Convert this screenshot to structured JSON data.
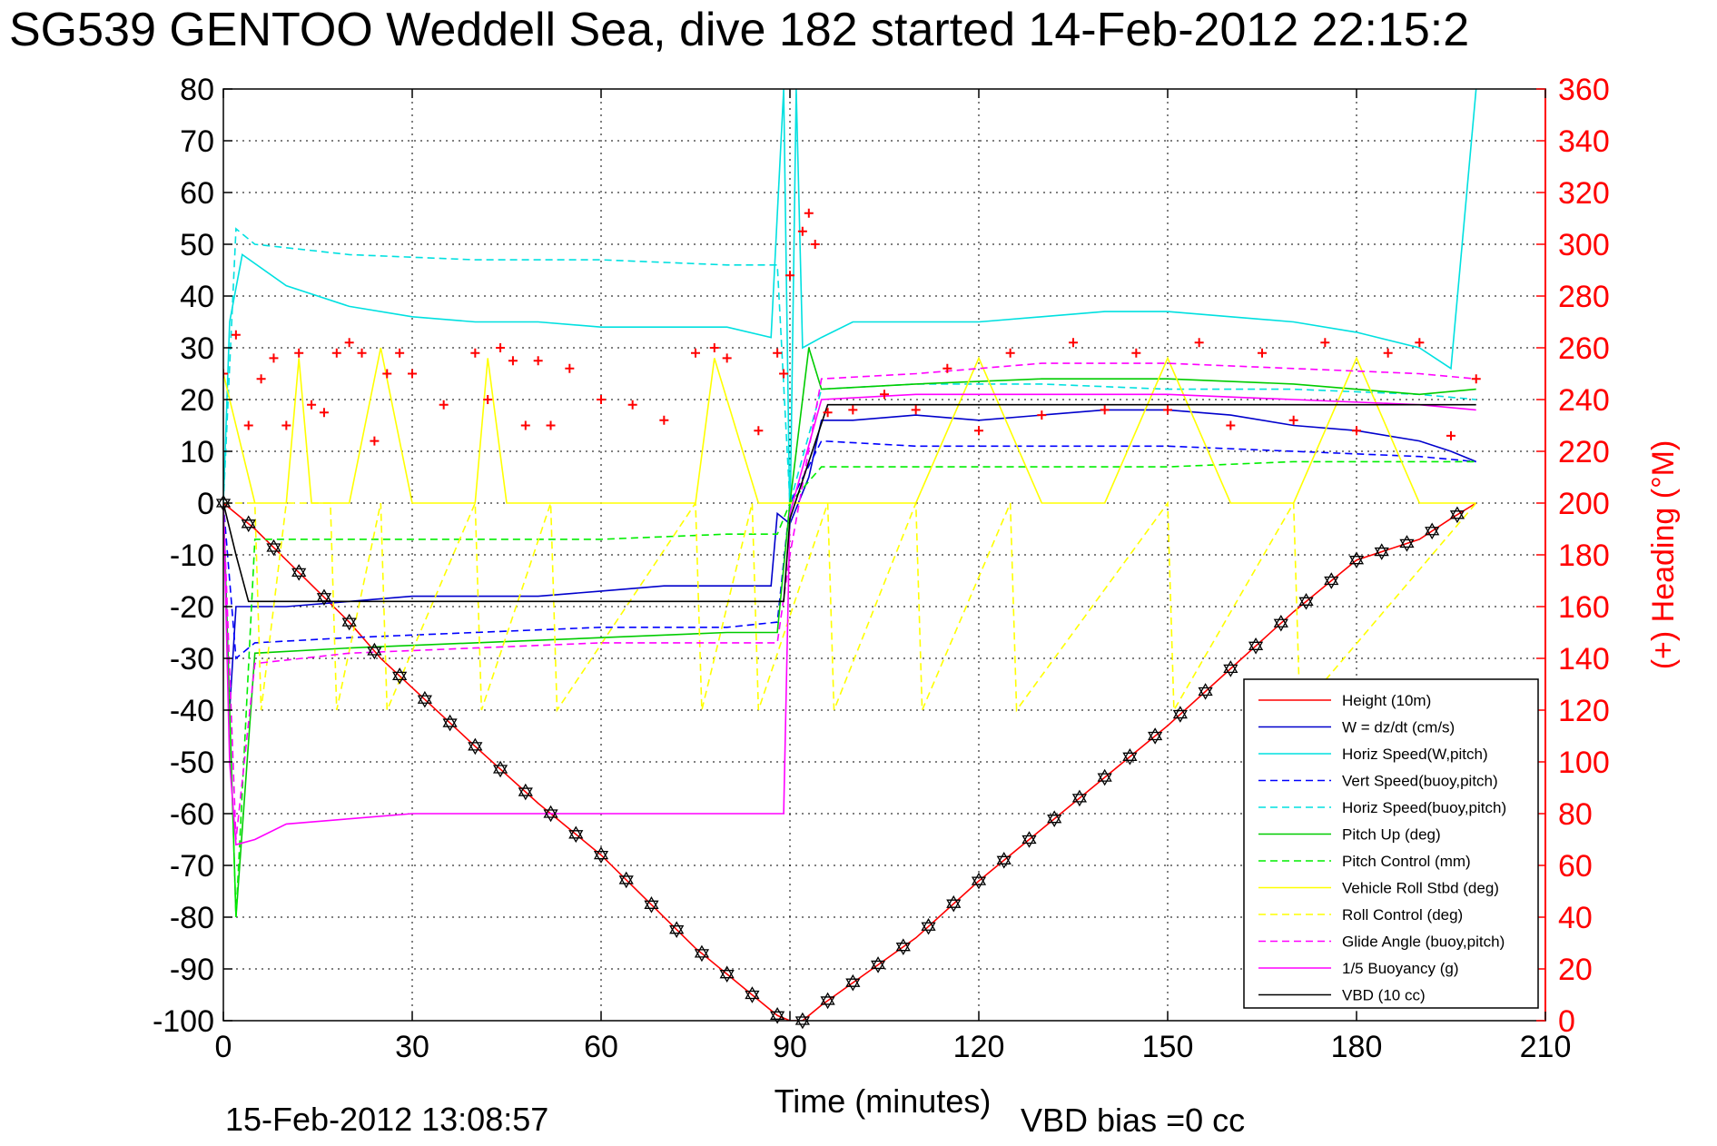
{
  "chart_data": {
    "type": "line",
    "title": "SG539 GENTOO Weddell Sea, dive 182 started 14-Feb-2012 22:15:2",
    "xlabel": "Time (minutes)",
    "ylabel_right": "(+) Heading (°M)",
    "timestamp": "15-Feb-2012 13:08:57",
    "vbd_bias": "VBD bias =0 cc",
    "xlim": [
      0,
      210
    ],
    "ylim": [
      -100,
      80
    ],
    "ylim_right": [
      0,
      360
    ],
    "grid": true,
    "legend_position": "lower-right",
    "x_ticks": [
      "0",
      "30",
      "60",
      "90",
      "120",
      "150",
      "180",
      "210"
    ],
    "y_ticks": [
      "80",
      "70",
      "60",
      "50",
      "40",
      "30",
      "20",
      "10",
      "0",
      "-10",
      "-20",
      "-30",
      "-40",
      "-50",
      "-60",
      "-70",
      "-80",
      "-90",
      "-100"
    ],
    "y_ticks_right": [
      "360",
      "340",
      "320",
      "300",
      "280",
      "260",
      "240",
      "220",
      "200",
      "180",
      "160",
      "140",
      "120",
      "100",
      "80",
      "60",
      "40",
      "20",
      "0"
    ],
    "series": [
      {
        "name": "Height (10m)",
        "color": "#ff0000",
        "style": "solid",
        "x": [
          0,
          2,
          5,
          10,
          20,
          25,
          40,
          50,
          60,
          75,
          80,
          85,
          88,
          90,
          92,
          95,
          110,
          120,
          130,
          150,
          160,
          170,
          180,
          190,
          195,
          199
        ],
        "y": [
          0,
          -2,
          -5,
          -11,
          -23,
          -30,
          -47,
          -58,
          -68,
          -86,
          -91,
          -96,
          -99,
          -100,
          -100,
          -97,
          -84,
          -73,
          -63,
          -43,
          -32,
          -21,
          -11,
          -7,
          -3,
          0
        ]
      },
      {
        "name": "W = dz/dt (cm/s)",
        "color": "#0000cc",
        "style": "solid",
        "x": [
          0,
          1,
          2,
          5,
          10,
          20,
          30,
          38,
          40,
          50,
          60,
          70,
          80,
          87,
          88,
          90,
          93,
          95,
          100,
          110,
          120,
          130,
          140,
          150,
          160,
          170,
          180,
          190,
          195,
          199
        ],
        "y": [
          0,
          -40,
          -20,
          -20,
          -20,
          -19,
          -18,
          -18,
          -18,
          -18,
          -17,
          -16,
          -16,
          -16,
          -2,
          -4,
          5,
          16,
          16,
          17,
          16,
          17,
          18,
          18,
          17,
          15,
          14,
          12,
          10,
          8
        ]
      },
      {
        "name": "Horiz Speed(W,pitch)",
        "color": "#00e0e0",
        "style": "solid",
        "x": [
          0,
          1,
          3,
          10,
          20,
          30,
          40,
          50,
          60,
          70,
          80,
          87,
          89,
          90,
          91,
          92,
          95,
          100,
          110,
          120,
          130,
          140,
          150,
          160,
          170,
          180,
          190,
          195,
          199
        ],
        "y": [
          0,
          35,
          48,
          42,
          38,
          36,
          35,
          35,
          34,
          34,
          34,
          32,
          80,
          -5,
          80,
          30,
          32,
          35,
          35,
          35,
          36,
          37,
          37,
          36,
          35,
          33,
          30,
          26,
          80
        ]
      },
      {
        "name": "Vert Speed(buoy,pitch)",
        "color": "#0000ff",
        "style": "dashed",
        "x": [
          0,
          2,
          5,
          20,
          40,
          60,
          80,
          88,
          90,
          95,
          110,
          130,
          150,
          170,
          190,
          199
        ],
        "y": [
          0,
          -30,
          -27,
          -26,
          -25,
          -24,
          -24,
          -23,
          0,
          12,
          11,
          11,
          11,
          10,
          9,
          8
        ]
      },
      {
        "name": "Horiz Speed(buoy,pitch)",
        "color": "#00e0e0",
        "style": "dashed",
        "x": [
          0,
          2,
          5,
          20,
          40,
          60,
          80,
          88,
          90,
          95,
          110,
          130,
          150,
          170,
          190,
          199
        ],
        "y": [
          0,
          53,
          50,
          48,
          47,
          47,
          46,
          46,
          0,
          22,
          23,
          23,
          22,
          22,
          21,
          20
        ]
      },
      {
        "name": "Pitch Up (deg)",
        "color": "#00cc00",
        "style": "solid",
        "x": [
          0,
          2,
          5,
          20,
          40,
          60,
          80,
          88,
          90,
          93,
          95,
          110,
          130,
          150,
          170,
          190,
          199
        ],
        "y": [
          0,
          -80,
          -29,
          -28,
          -27,
          -26,
          -25,
          -25,
          0,
          30,
          22,
          23,
          24,
          24,
          23,
          21,
          22
        ]
      },
      {
        "name": "Pitch Control (mm)",
        "color": "#00ee00",
        "style": "dashed",
        "x": [
          0,
          2,
          5,
          20,
          40,
          60,
          80,
          88,
          90,
          95,
          110,
          130,
          150,
          170,
          190,
          199
        ],
        "y": [
          0,
          -80,
          -7,
          -7,
          -7,
          -7,
          -6,
          -6,
          0,
          7,
          7,
          7,
          7,
          8,
          8,
          8
        ]
      },
      {
        "name": "Vehicle Roll Stbd (deg)",
        "color": "#ffff00",
        "style": "solid",
        "x": [
          0,
          5,
          10,
          12,
          14,
          20,
          25,
          30,
          40,
          42,
          45,
          50,
          60,
          75,
          78,
          85,
          88,
          90,
          95,
          100,
          110,
          120,
          130,
          140,
          150,
          160,
          170,
          180,
          190,
          199
        ],
        "y": [
          25,
          0,
          0,
          28,
          0,
          0,
          30,
          0,
          0,
          28,
          0,
          0,
          0,
          0,
          28,
          0,
          0,
          0,
          0,
          0,
          0,
          28,
          0,
          0,
          28,
          0,
          0,
          28,
          0,
          0
        ]
      },
      {
        "name": "Roll Control (deg)",
        "color": "#ffff00",
        "style": "dashed",
        "x": [
          0,
          5,
          6,
          10,
          17,
          18,
          25,
          26,
          40,
          41,
          52,
          53,
          75,
          76,
          84,
          85,
          96,
          97,
          110,
          111,
          125,
          126,
          150,
          151,
          170,
          171,
          199
        ],
        "y": [
          0,
          0,
          -40,
          0,
          0,
          -40,
          0,
          -40,
          0,
          -40,
          0,
          -40,
          0,
          -40,
          0,
          -40,
          0,
          -40,
          0,
          -40,
          0,
          -40,
          0,
          -40,
          0,
          -40,
          0
        ]
      },
      {
        "name": "Glide Angle (buoy,pitch)",
        "color": "#ff00ff",
        "style": "dashed",
        "x": [
          0,
          2,
          5,
          20,
          40,
          60,
          80,
          88,
          90,
          95,
          110,
          130,
          150,
          170,
          190,
          199
        ],
        "y": [
          0,
          -65,
          -31,
          -29,
          -28,
          -27,
          -27,
          -27,
          -10,
          24,
          25,
          27,
          27,
          26,
          25,
          24
        ]
      },
      {
        "name": "1/5 Buoyancy (g)",
        "color": "#ff00ff",
        "style": "solid",
        "x": [
          0,
          1,
          2,
          5,
          10,
          20,
          30,
          40,
          60,
          80,
          89,
          90,
          95,
          110,
          130,
          150,
          170,
          190,
          199
        ],
        "y": [
          0,
          -50,
          -66,
          -65,
          -62,
          -61,
          -60,
          -60,
          -60,
          -60,
          -60,
          -2,
          20,
          21,
          21,
          21,
          20,
          19,
          18
        ]
      },
      {
        "name": "VBD (10 cc)",
        "color": "#000000",
        "style": "solid",
        "x": [
          0,
          2,
          4,
          30,
          60,
          89,
          90,
          96,
          120,
          150,
          180,
          199
        ],
        "y": [
          0,
          -10,
          -19,
          -19,
          -19,
          -19,
          -3,
          19,
          19,
          19,
          19,
          19
        ]
      },
      {
        "name": "Heading",
        "color": "#ff0000",
        "style": "markers",
        "axis": "right",
        "x": [
          0,
          2,
          4,
          6,
          8,
          10,
          12,
          14,
          16,
          18,
          20,
          22,
          24,
          26,
          28,
          30,
          35,
          40,
          42,
          44,
          46,
          48,
          50,
          52,
          55,
          60,
          65,
          70,
          75,
          78,
          80,
          85,
          88,
          89,
          90,
          92,
          93,
          94,
          96,
          100,
          105,
          110,
          115,
          120,
          125,
          130,
          135,
          140,
          145,
          150,
          155,
          160,
          165,
          170,
          175,
          180,
          185,
          190,
          195,
          199
        ],
        "y": [
          250,
          265,
          230,
          248,
          256,
          230,
          258,
          238,
          235,
          258,
          262,
          258,
          224,
          250,
          258,
          250,
          238,
          258,
          240,
          260,
          255,
          230,
          255,
          230,
          252,
          240,
          238,
          232,
          258,
          260,
          256,
          228,
          258,
          250,
          288,
          305,
          312,
          300,
          235,
          236,
          242,
          236,
          252,
          228,
          258,
          234,
          262,
          236,
          258,
          236,
          262,
          230,
          258,
          232,
          262,
          228,
          258,
          262,
          226,
          248
        ]
      }
    ]
  }
}
